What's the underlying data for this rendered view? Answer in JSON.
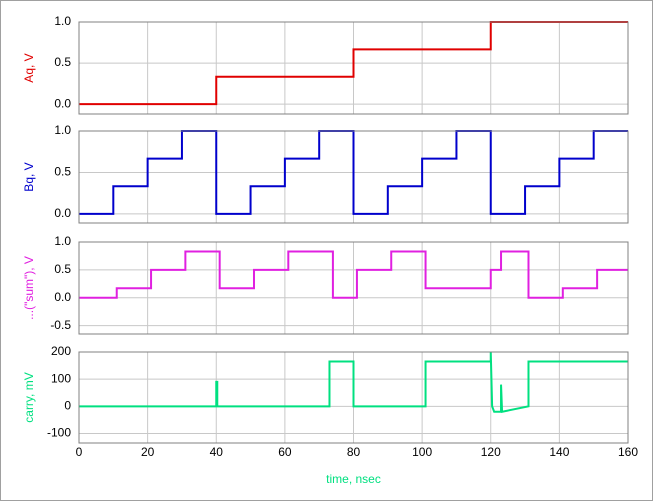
{
  "chart_data": [
    {
      "type": "line",
      "ylabel": "Aq, V",
      "x": [
        0,
        40,
        40,
        80,
        80,
        120,
        120,
        160
      ],
      "series": [
        {
          "name": "Aq",
          "color": "#e00000",
          "values": [
            0,
            0,
            0.333,
            0.333,
            0.667,
            0.667,
            1,
            1
          ]
        }
      ],
      "xlim": [
        0,
        160
      ],
      "xticks": [
        0,
        20,
        40,
        60,
        80,
        100,
        120,
        140,
        160
      ],
      "ylim": [
        -0.12,
        1.0
      ],
      "yticks": [
        {
          "value": 0,
          "label": "0.0"
        },
        0.5,
        {
          "value": 1,
          "label": "1.0"
        }
      ],
      "grid": true
    },
    {
      "type": "line",
      "ylabel": "Bq, V",
      "x": [
        0,
        10,
        10,
        20,
        20,
        30,
        30,
        40,
        40,
        50,
        50,
        60,
        60,
        70,
        70,
        80,
        80,
        90,
        90,
        100,
        100,
        110,
        110,
        120,
        120,
        130,
        130,
        140,
        140,
        150,
        150,
        160
      ],
      "series": [
        {
          "name": "Bq",
          "color": "#0000cc",
          "values": [
            0,
            0,
            0.333,
            0.333,
            0.667,
            0.667,
            1,
            1,
            0,
            0,
            0.333,
            0.333,
            0.667,
            0.667,
            1,
            1,
            0,
            0,
            0.333,
            0.333,
            0.667,
            0.667,
            1,
            1,
            0,
            0,
            0.333,
            0.333,
            0.667,
            0.667,
            1,
            1
          ]
        }
      ],
      "xlim": [
        0,
        160
      ],
      "xticks": [
        0,
        20,
        40,
        60,
        80,
        100,
        120,
        140,
        160
      ],
      "ylim": [
        -0.11,
        1.0
      ],
      "yticks": [
        {
          "value": 0,
          "label": "0.0"
        },
        0.5,
        {
          "value": 1,
          "label": "1.0"
        }
      ],
      "grid": true
    },
    {
      "type": "line",
      "ylabel": "...(\"sum\"), V",
      "x": [
        0,
        11,
        11,
        21,
        21,
        31,
        31,
        41,
        41,
        51,
        51,
        61,
        61,
        74,
        74,
        81,
        81,
        91,
        91,
        101,
        101,
        111,
        111,
        120,
        120,
        123,
        123,
        131,
        131,
        141,
        141,
        151,
        151,
        160
      ],
      "series": [
        {
          "name": "sum",
          "color": "#e020e0",
          "values": [
            0,
            0,
            0.17,
            0.17,
            0.5,
            0.5,
            0.83,
            0.83,
            0.17,
            0.17,
            0.5,
            0.5,
            0.83,
            0.83,
            0,
            0,
            0.5,
            0.5,
            0.83,
            0.83,
            0.17,
            0.17,
            0.17,
            0.17,
            0.5,
            0.5,
            0.83,
            0.83,
            0,
            0,
            0.17,
            0.17,
            0.5,
            0.5
          ]
        }
      ],
      "xlim": [
        0,
        160
      ],
      "xticks": [
        0,
        20,
        40,
        60,
        80,
        100,
        120,
        140,
        160
      ],
      "ylim": [
        -0.65,
        1.0
      ],
      "yticks": [
        -0.5,
        {
          "value": 0,
          "label": "0.0"
        },
        0.5,
        {
          "value": 1,
          "label": "1.0"
        }
      ],
      "grid": true
    },
    {
      "type": "line",
      "ylabel": "carry, mV",
      "xlabel": "time, nsec",
      "show_x_labels": true,
      "x": [
        0,
        40,
        40,
        40.3,
        40.3,
        73,
        73,
        80,
        80,
        101,
        101,
        120,
        120,
        120.4,
        121,
        123,
        123,
        123.3,
        131,
        131,
        160
      ],
      "series": [
        {
          "name": "carry",
          "color": "#00e080",
          "values": [
            0,
            0,
            90,
            90,
            0,
            0,
            165,
            165,
            0,
            0,
            165,
            165,
            200,
            0,
            -20,
            -20,
            80,
            -20,
            0,
            165,
            165
          ]
        }
      ],
      "xlim": [
        0,
        160
      ],
      "xticks": [
        0,
        20,
        40,
        60,
        80,
        100,
        120,
        140,
        160
      ],
      "ylim": [
        -135,
        200
      ],
      "yticks": [
        -100,
        0,
        100,
        200
      ],
      "grid": true
    }
  ]
}
